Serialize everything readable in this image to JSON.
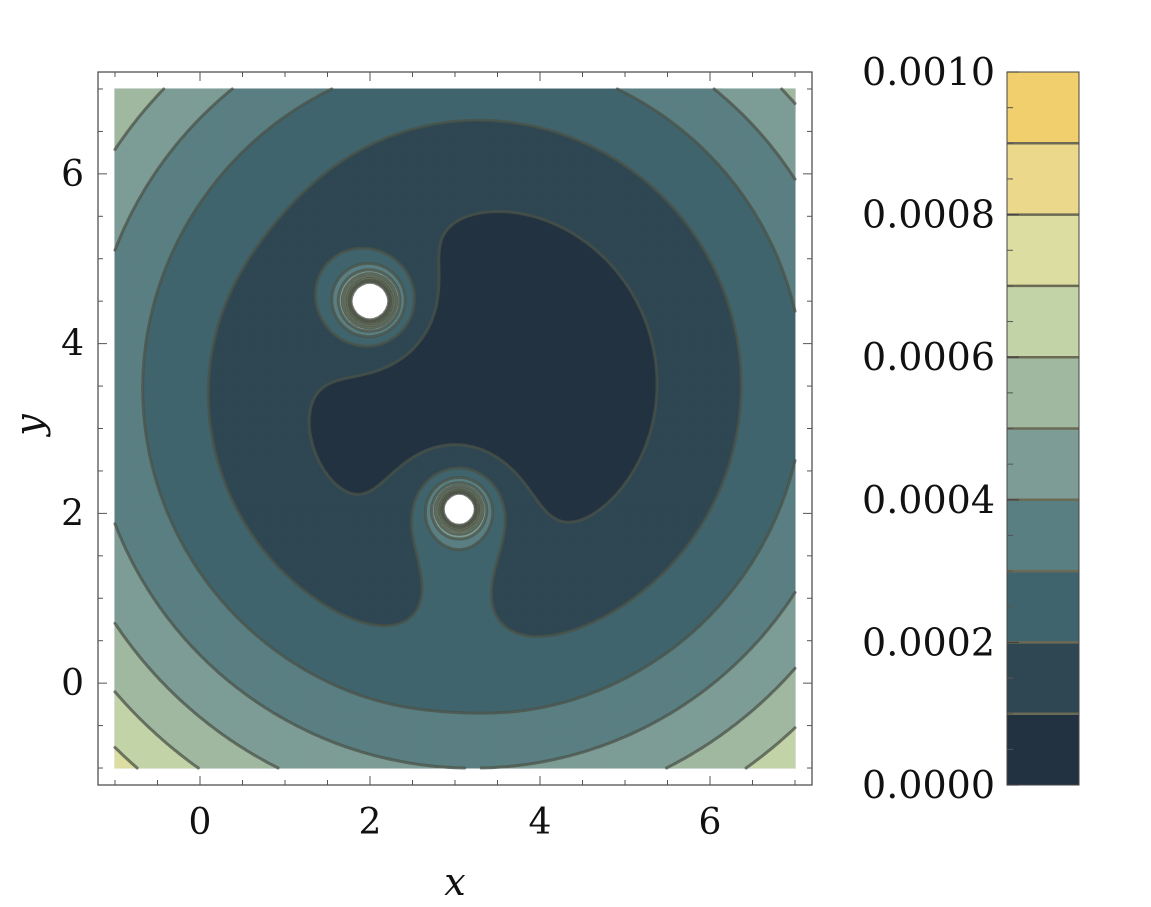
{
  "chart_data": {
    "type": "heatmap",
    "subtype": "contour",
    "title": "",
    "xlabel": "x",
    "ylabel": "y",
    "xlim": [
      -1.2,
      7.2
    ],
    "ylim": [
      -1.2,
      7.2
    ],
    "data_range_x": [
      -1,
      7
    ],
    "data_range_y": [
      -1,
      7
    ],
    "xticks": [
      0,
      2,
      4,
      6
    ],
    "yticks": [
      0,
      2,
      4,
      6
    ],
    "xtick_labels": [
      "0",
      "2",
      "4",
      "6"
    ],
    "ytick_labels": [
      "0",
      "2",
      "4",
      "6"
    ],
    "contour_interval": 0.0001,
    "sources": [
      {
        "x": 2.0,
        "y": 4.5
      },
      {
        "x": 3.05,
        "y": 2.05
      }
    ],
    "colorbar": {
      "min": 0.0,
      "max": 0.001,
      "tick_values": [
        0.0,
        0.0002,
        0.0004,
        0.0006,
        0.0008,
        0.001
      ],
      "tick_labels": [
        "0.0000",
        "0.0002",
        "0.0004",
        "0.0006",
        "0.0008",
        "0.0010"
      ],
      "band_colors": [
        "#233240",
        "#2f4752",
        "#40646d",
        "#5a7f82",
        "#7d9c96",
        "#a0b8a0",
        "#c3d3a8",
        "#dbdea0",
        "#ecd88a",
        "#f0cf6c"
      ]
    },
    "grid": false,
    "legend_position": "right",
    "contour_line_color": "#4a5247",
    "hole_color": "#ffffff"
  }
}
